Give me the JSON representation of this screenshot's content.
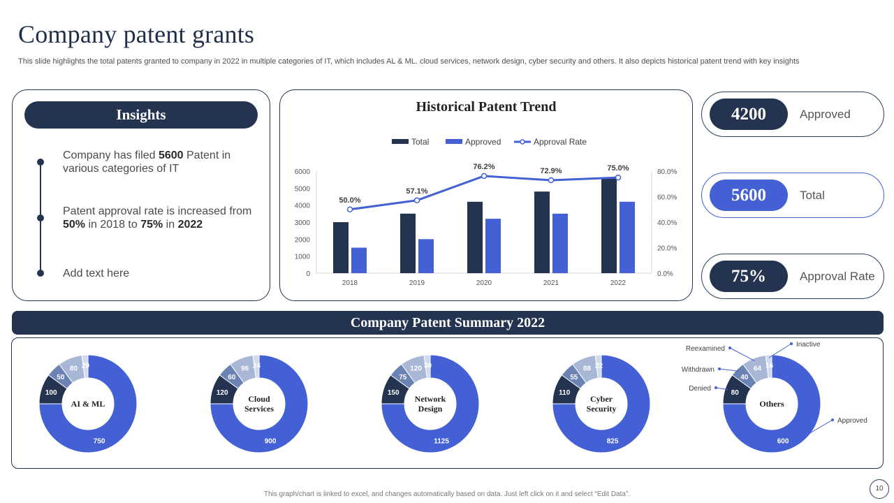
{
  "header": {
    "title": "Company patent grants",
    "subtitle": "This slide highlights the total patents granted to company in 2022 in multiple categories of IT, which includes AL & ML. cloud services, network design, cyber security and others. It also depicts historical patent trend with key insights"
  },
  "insights": {
    "heading": "Insights",
    "items": [
      {
        "pre": "Company has filed ",
        "bold1": "5600",
        "mid": " Patent in various categories of IT"
      },
      {
        "pre": "Patent approval rate is increased from ",
        "bold1": "50%",
        "mid": " in 2018 to ",
        "bold2": "75%",
        "mid2": " in ",
        "bold3": "2022"
      },
      {
        "pre": "Add text here"
      }
    ]
  },
  "colors": {
    "navy": "#233350",
    "blue": "#4361d4",
    "steel": "#6b82b5",
    "light": "#a9b7d6",
    "pale": "#d2dbee"
  },
  "kpis": [
    {
      "value": "4200",
      "label": "Approved",
      "style": "navy"
    },
    {
      "value": "5600",
      "label": "Total",
      "style": "blue"
    },
    {
      "value": "75%",
      "label": "Approval Rate",
      "style": "navy"
    }
  ],
  "summary": {
    "heading": "Company Patent Summary 2022"
  },
  "chart_data": [
    {
      "type": "bar",
      "title": "Historical Patent Trend",
      "categories": [
        "2018",
        "2019",
        "2020",
        "2021",
        "2022"
      ],
      "series": [
        {
          "name": "Total",
          "kind": "bar",
          "color": "#233350",
          "values": [
            3000,
            3500,
            4200,
            4800,
            5600
          ]
        },
        {
          "name": "Approved",
          "kind": "bar",
          "color": "#4361d4",
          "values": [
            1500,
            2000,
            3200,
            3500,
            4200
          ]
        },
        {
          "name": "Approval Rate",
          "kind": "line",
          "axis": "secondary",
          "color": "#4361d4",
          "values": [
            50.0,
            57.1,
            76.2,
            72.9,
            75.0
          ],
          "labels": [
            "50.0%",
            "57.1%",
            "76.2%",
            "72.9%",
            "75.0%"
          ]
        }
      ],
      "ylim": [
        0,
        6000
      ],
      "y_ticks": [
        "0",
        "1000",
        "2000",
        "3000",
        "4000",
        "5000",
        "6000"
      ],
      "y2lim": [
        0,
        80
      ],
      "y2_ticks": [
        "0.0%",
        "20.0%",
        "40.0%",
        "60.0%",
        "80.0%"
      ],
      "legend": "top",
      "grid": false
    },
    {
      "type": "pie",
      "title": "AI & ML",
      "slices": [
        {
          "name": "Approved",
          "value": 750
        },
        {
          "name": "Denied",
          "value": 100
        },
        {
          "name": "Withdrawn",
          "value": 50
        },
        {
          "name": "Reexamined",
          "value": 80
        },
        {
          "name": "Inactive",
          "value": 20
        }
      ]
    },
    {
      "type": "pie",
      "title": "Cloud Services",
      "slices": [
        {
          "name": "Approved",
          "value": 900
        },
        {
          "name": "Denied",
          "value": 120
        },
        {
          "name": "Withdrawn",
          "value": 60
        },
        {
          "name": "Reexamined",
          "value": 96
        },
        {
          "name": "Inactive",
          "value": 24
        }
      ]
    },
    {
      "type": "pie",
      "title": "Network Design",
      "slices": [
        {
          "name": "Approved",
          "value": 1125
        },
        {
          "name": "Denied",
          "value": 150
        },
        {
          "name": "Withdrawn",
          "value": 75
        },
        {
          "name": "Reexamined",
          "value": 120
        },
        {
          "name": "Inactive",
          "value": 30
        }
      ]
    },
    {
      "type": "pie",
      "title": "Cyber Security",
      "slices": [
        {
          "name": "Approved",
          "value": 825
        },
        {
          "name": "Denied",
          "value": 110
        },
        {
          "name": "Withdrawn",
          "value": 55
        },
        {
          "name": "Reexamined",
          "value": 88
        },
        {
          "name": "Inactive",
          "value": 22
        }
      ]
    },
    {
      "type": "pie",
      "title": "Others",
      "show_category_labels": true,
      "slices": [
        {
          "name": "Approved",
          "value": 600
        },
        {
          "name": "Denied",
          "value": 80
        },
        {
          "name": "Withdrawn",
          "value": 40
        },
        {
          "name": "Reexamined",
          "value": 64
        },
        {
          "name": "Inactive",
          "value": 16
        }
      ]
    }
  ],
  "donut_center_lines": [
    [
      "AI & ML"
    ],
    [
      "Cloud",
      "Services"
    ],
    [
      "Network",
      "Design"
    ],
    [
      "Cyber",
      "Security"
    ],
    [
      "Others"
    ]
  ],
  "footer": {
    "note": "This graph/chart is linked to excel, and changes automatically based on data. Just left click on it and select “Edit Data”.",
    "page": "10"
  }
}
